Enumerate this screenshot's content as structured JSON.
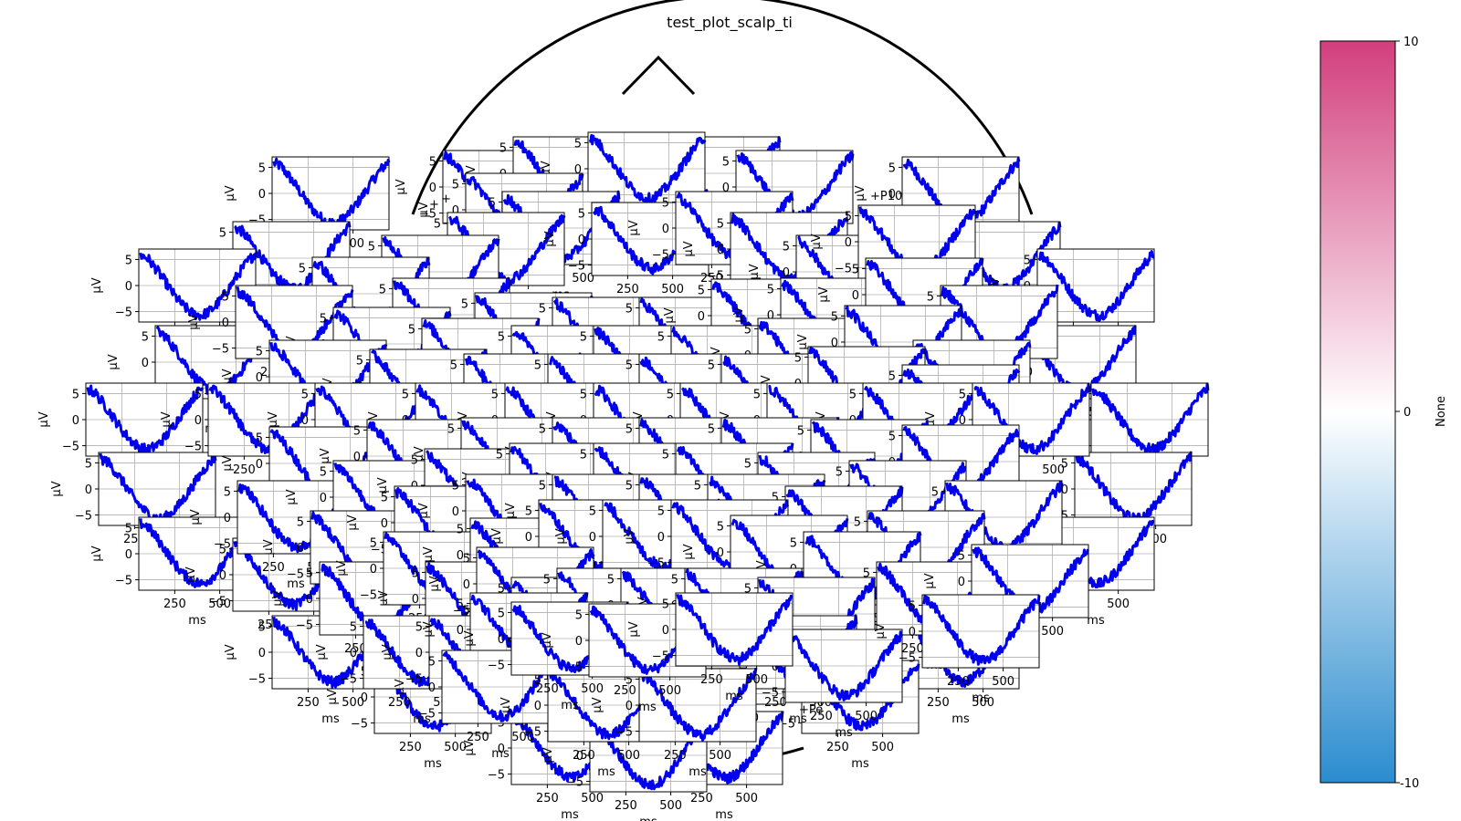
{
  "chart_data": {
    "type": "line",
    "title": "test_plot_scalp_ti",
    "subplot": {
      "xlabel": "ms",
      "ylabel": "µV",
      "xlim": [
        50,
        700
      ],
      "ylim": [
        -7,
        7
      ],
      "xticks": [
        250,
        500
      ],
      "yticks": [
        -5,
        0,
        5
      ],
      "grid": true,
      "line_color": "#0000ee",
      "x": [
        50,
        100,
        150,
        200,
        250,
        300,
        350,
        400,
        450,
        500,
        550,
        600,
        650,
        700
      ],
      "y": [
        6.0,
        5.2,
        3.0,
        0.6,
        -2.0,
        -4.0,
        -5.4,
        -5.8,
        -4.8,
        -3.0,
        -0.6,
        2.0,
        4.4,
        6.2
      ],
      "noise_amplitude": 1.0
    },
    "colorbar": {
      "label": "None",
      "ticks": [
        10,
        0,
        -10
      ],
      "colors": [
        "#d23f7d",
        "#ffffff",
        "#2b8cce"
      ]
    },
    "partial_channel_labels": [
      "+",
      "+",
      "+P10",
      "+Pe"
    ]
  }
}
